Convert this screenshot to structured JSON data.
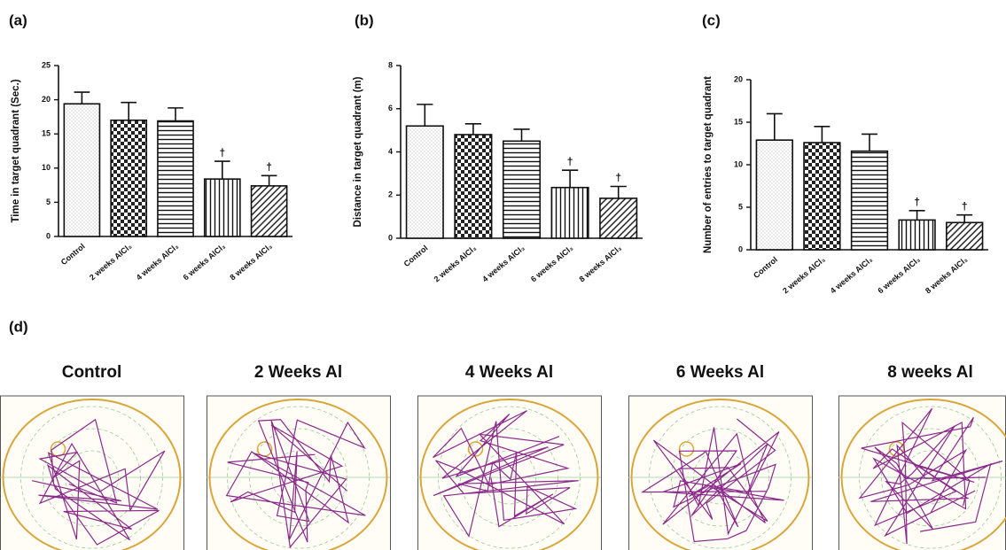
{
  "chart_data": [
    {
      "type": "bar",
      "panel": "(a)",
      "y_label": "Time in target quadrant (Sec.)",
      "categories": [
        "Control",
        "2 weeks AlCl₃",
        "4 weeks AlCl₃",
        "6 weeks AlCl₃",
        "8 weeks AlCl₃"
      ],
      "values": [
        19.4,
        17.0,
        16.9,
        8.4,
        7.4
      ],
      "errors": [
        1.7,
        2.6,
        1.9,
        2.6,
        1.5
      ],
      "annotations": [
        null,
        null,
        null,
        "†",
        "†"
      ],
      "ylim": [
        0,
        25
      ],
      "yticks": [
        0,
        5,
        10,
        15,
        20,
        25
      ]
    },
    {
      "type": "bar",
      "panel": "(b)",
      "y_label": "Distance in target quadrant (m)",
      "categories": [
        "Control",
        "2 weeks AlCl₃",
        "4 weeks AlCl₃",
        "6 weeks AlCl₃",
        "8 weeks AlCl₃"
      ],
      "values": [
        5.2,
        4.8,
        4.5,
        2.35,
        1.85
      ],
      "errors": [
        1.0,
        0.5,
        0.55,
        0.8,
        0.55
      ],
      "annotations": [
        null,
        null,
        null,
        "†",
        "†"
      ],
      "ylim": [
        0,
        8
      ],
      "yticks": [
        0,
        2,
        4,
        6,
        8
      ]
    },
    {
      "type": "bar",
      "panel": "(c)",
      "y_label": "Number of entries to target quadrant",
      "categories": [
        "Control",
        "2 weeks AlCl₃",
        "4 weeks AlCl₃",
        "6 weeks AlCl₃",
        "8 weeks AlCl₃"
      ],
      "values": [
        12.9,
        12.6,
        11.6,
        3.5,
        3.2
      ],
      "errors": [
        3.1,
        1.9,
        2.0,
        1.1,
        0.9
      ],
      "annotations": [
        null,
        null,
        null,
        "†",
        "†"
      ],
      "ylim": [
        0,
        20
      ],
      "yticks": [
        0,
        5,
        10,
        15,
        20
      ]
    }
  ],
  "tracks": {
    "panel": "(d)",
    "titles": [
      "Control",
      "2 Weeks Al",
      "4 Weeks Al",
      "6 Weeks Al",
      "8 weeks Al"
    ]
  }
}
